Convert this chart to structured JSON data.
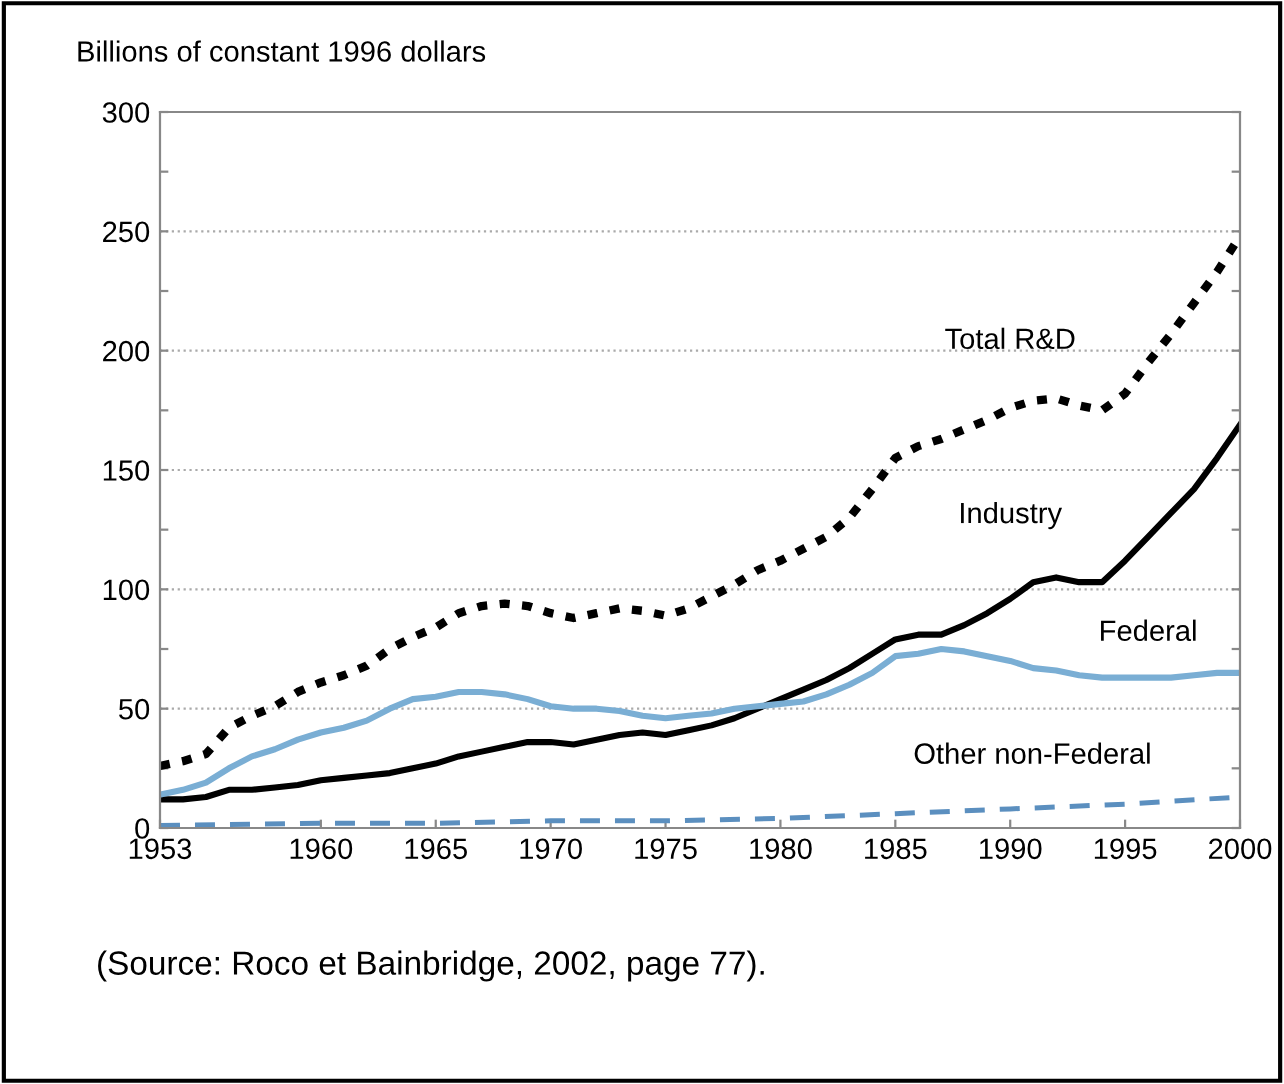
{
  "chart_data": {
    "type": "line",
    "ylabel": "Billions of constant 1996 dollars",
    "xlim": [
      1953,
      2000
    ],
    "xticks": [
      1953,
      1960,
      1965,
      1970,
      1975,
      1980,
      1985,
      1990,
      1995,
      2000
    ],
    "ylim": [
      0,
      300
    ],
    "yticks": [
      0,
      {
        "value": 25,
        "label": null
      },
      50,
      {
        "value": 75,
        "label": null
      },
      100,
      {
        "value": 125,
        "label": null
      },
      150,
      {
        "value": 175,
        "label": null
      },
      200,
      {
        "value": 225,
        "label": null
      },
      250,
      {
        "value": 275,
        "label": null
      },
      300
    ],
    "grid": "y",
    "legend": false,
    "x": [
      1953,
      1954,
      1955,
      1956,
      1957,
      1958,
      1959,
      1960,
      1961,
      1962,
      1963,
      1964,
      1965,
      1966,
      1967,
      1968,
      1969,
      1970,
      1971,
      1972,
      1973,
      1974,
      1975,
      1976,
      1977,
      1978,
      1979,
      1980,
      1981,
      1982,
      1983,
      1984,
      1985,
      1986,
      1987,
      1988,
      1989,
      1990,
      1991,
      1992,
      1993,
      1994,
      1995,
      1996,
      1997,
      1998,
      1999,
      2000
    ],
    "series": [
      {
        "name": "Total R&D",
        "color": "#000000",
        "line_style": "dotted",
        "values": [
          26,
          28,
          31,
          42,
          47,
          51,
          57,
          61,
          64,
          68,
          75,
          80,
          84,
          90,
          93,
          94,
          93,
          90,
          88,
          90,
          92,
          91,
          89,
          92,
          97,
          102,
          108,
          112,
          117,
          122,
          130,
          142,
          155,
          160,
          163,
          167,
          171,
          176,
          179,
          180,
          177,
          175,
          182,
          195,
          207,
          220,
          233,
          248
        ]
      },
      {
        "name": "Industry",
        "color": "#000000",
        "line_style": "solid",
        "values": [
          12,
          12,
          13,
          16,
          16,
          17,
          18,
          20,
          21,
          22,
          23,
          25,
          27,
          30,
          32,
          34,
          36,
          36,
          35,
          37,
          39,
          40,
          39,
          41,
          43,
          46,
          50,
          54,
          58,
          62,
          67,
          73,
          79,
          81,
          81,
          85,
          90,
          96,
          103,
          105,
          103,
          103,
          112,
          122,
          132,
          142,
          155,
          169
        ]
      },
      {
        "name": "Federal",
        "color": "#7aaed4",
        "line_style": "solid",
        "values": [
          14,
          16,
          19,
          25,
          30,
          33,
          37,
          40,
          42,
          45,
          50,
          54,
          55,
          57,
          57,
          56,
          54,
          51,
          50,
          50,
          49,
          47,
          46,
          47,
          48,
          50,
          51,
          52,
          53,
          56,
          60,
          65,
          72,
          73,
          75,
          74,
          72,
          70,
          67,
          66,
          64,
          63,
          63,
          63,
          63,
          64,
          65,
          65
        ]
      },
      {
        "name": "Other non-Federal",
        "color": "#5b8fbf",
        "line_style": "dashed",
        "x": [
          1953,
          1960,
          1965,
          1970,
          1975,
          1980,
          1985,
          1990,
          1995,
          2000
        ],
        "values": [
          1,
          2,
          2,
          3,
          3,
          4,
          6,
          8,
          10,
          13
        ]
      }
    ],
    "annotations": [
      "(Source: Roco et Bainbridge, 2002, page 77)."
    ]
  }
}
